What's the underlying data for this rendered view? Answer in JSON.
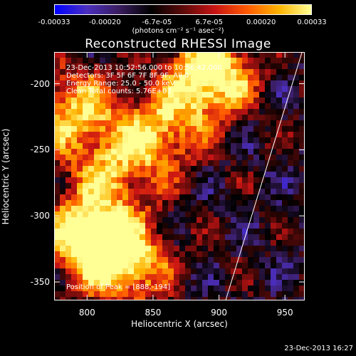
{
  "colorbar": {
    "ticks": [
      "-0.00033",
      "-0.00020",
      "-6.7e-05",
      "6.7e-05",
      "0.00020",
      "0.00033"
    ],
    "tick_values": [
      -0.00033,
      -0.0002,
      -6.7e-05,
      6.7e-05,
      0.0002,
      0.00033
    ],
    "range": [
      -0.00033,
      0.00033
    ],
    "colormap": [
      "#0000ff",
      "#4b2fbf",
      "#3a1d60",
      "#000000",
      "#5c0a0a",
      "#c81414",
      "#ff5a00",
      "#ffb400",
      "#ffff96"
    ],
    "units": "(photons cm⁻² s⁻¹ asec⁻²)"
  },
  "info": {
    "line1": "23-Dec-2013 10:52:56.000 to 10:56:42.000",
    "line2": "Detectors: 3F 5F 6F 7F 8F 9F, All 0",
    "line3": "Energy Range: 25.0 - 50.0 keV",
    "line4": "Clean     Total counts: 5.76E+03",
    "peak": "Position of Peak = [888,-194]"
  },
  "footer_stamp": "23-Dec-2013 16:27",
  "chart_data": {
    "type": "heatmap",
    "title": "Reconstructed RHESSI Image",
    "xlabel": "Heliocentric X (arcsec)",
    "ylabel": "Heliocentric Y (arcsec)",
    "xlim": [
      775,
      965
    ],
    "ylim": [
      -364,
      -176
    ],
    "xticks": [
      800,
      850,
      900,
      950
    ],
    "yticks": [
      -200,
      -250,
      -300,
      -350
    ],
    "xtick_labels": [
      "800",
      "850",
      "900",
      "950"
    ],
    "ytick_labels": [
      "-200",
      "-250",
      "-300",
      "-350"
    ],
    "peak": {
      "x": 888,
      "y": -194
    },
    "limb_line": {
      "x": [
        905,
        963
      ],
      "y": [
        -364,
        -176
      ]
    },
    "bright_sources": [
      {
        "x": 893,
        "y": -194,
        "level": 1.0
      },
      {
        "x": 800,
        "y": -315,
        "level": 0.95
      },
      {
        "x": 830,
        "y": -335,
        "level": 0.8
      },
      {
        "x": 790,
        "y": -220,
        "level": 0.7
      },
      {
        "x": 855,
        "y": -235,
        "level": 0.65
      },
      {
        "x": 820,
        "y": -265,
        "level": 0.55
      }
    ]
  }
}
